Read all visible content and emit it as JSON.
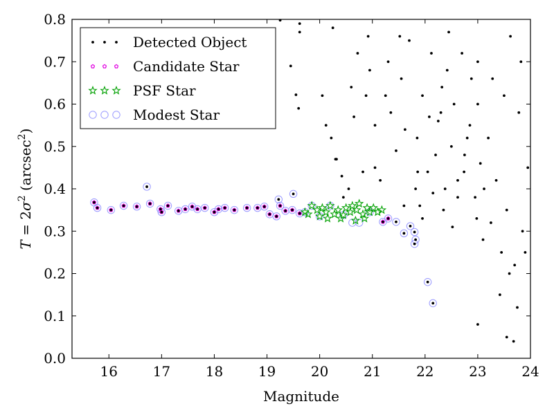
{
  "chart_data": {
    "type": "scatter",
    "xlabel": "Magnitude",
    "ylabel": {
      "main": "T",
      "eq": " = 2",
      "sigma": "σ",
      "sup2": "2",
      "open": " (arcsec",
      "close": ")"
    },
    "xlim": [
      15.3,
      24
    ],
    "ylim": [
      0.0,
      0.8
    ],
    "xticks": [
      16,
      17,
      18,
      19,
      20,
      21,
      22,
      23,
      24
    ],
    "yticks": [
      0.0,
      0.1,
      0.2,
      0.3,
      0.4,
      0.5,
      0.6,
      0.7,
      0.8
    ],
    "legend_position": "top-left",
    "grid": false,
    "series": [
      {
        "name": "Detected Object",
        "marker": "dot",
        "color": "#000000",
        "points": [
          [
            15.72,
            0.368
          ],
          [
            15.78,
            0.355
          ],
          [
            16.04,
            0.35
          ],
          [
            16.28,
            0.36
          ],
          [
            16.53,
            0.358
          ],
          [
            16.72,
            0.405
          ],
          [
            16.78,
            0.365
          ],
          [
            16.98,
            0.352
          ],
          [
            17.0,
            0.345
          ],
          [
            17.12,
            0.36
          ],
          [
            17.32,
            0.348
          ],
          [
            17.45,
            0.352
          ],
          [
            17.58,
            0.358
          ],
          [
            17.68,
            0.352
          ],
          [
            17.82,
            0.355
          ],
          [
            18.0,
            0.345
          ],
          [
            18.08,
            0.352
          ],
          [
            18.2,
            0.355
          ],
          [
            18.38,
            0.35
          ],
          [
            18.62,
            0.355
          ],
          [
            18.82,
            0.355
          ],
          [
            18.95,
            0.358
          ],
          [
            19.05,
            0.34
          ],
          [
            19.18,
            0.335
          ],
          [
            19.25,
            0.36
          ],
          [
            19.35,
            0.348
          ],
          [
            19.48,
            0.35
          ],
          [
            19.62,
            0.342
          ],
          [
            19.5,
            0.388
          ],
          [
            19.22,
            0.375
          ],
          [
            21.2,
            0.322
          ],
          [
            21.3,
            0.33
          ],
          [
            21.45,
            0.322
          ],
          [
            21.6,
            0.295
          ],
          [
            21.72,
            0.312
          ],
          [
            21.8,
            0.298
          ],
          [
            21.82,
            0.28
          ],
          [
            21.8,
            0.27
          ],
          [
            22.05,
            0.18
          ],
          [
            22.15,
            0.13
          ],
          [
            19.25,
            0.798
          ],
          [
            19.45,
            0.69
          ],
          [
            19.62,
            0.79
          ],
          [
            19.55,
            0.622
          ],
          [
            19.62,
            0.77
          ],
          [
            19.6,
            0.59
          ],
          [
            20.05,
            0.62
          ],
          [
            20.12,
            0.55
          ],
          [
            20.22,
            0.52
          ],
          [
            20.25,
            0.78
          ],
          [
            20.32,
            0.47
          ],
          [
            20.42,
            0.43
          ],
          [
            20.45,
            0.38
          ],
          [
            20.6,
            0.64
          ],
          [
            20.65,
            0.57
          ],
          [
            20.72,
            0.72
          ],
          [
            20.88,
            0.62
          ],
          [
            21.05,
            0.55
          ],
          [
            21.05,
            0.45
          ],
          [
            21.15,
            0.42
          ],
          [
            21.3,
            0.7
          ],
          [
            21.35,
            0.58
          ],
          [
            21.45,
            0.49
          ],
          [
            21.55,
            0.66
          ],
          [
            21.6,
            0.36
          ],
          [
            21.7,
            0.75
          ],
          [
            21.82,
            0.4
          ],
          [
            21.85,
            0.52
          ],
          [
            21.95,
            0.62
          ],
          [
            22.05,
            0.44
          ],
          [
            22.12,
            0.72
          ],
          [
            22.25,
            0.56
          ],
          [
            22.35,
            0.35
          ],
          [
            22.42,
            0.68
          ],
          [
            22.5,
            0.5
          ],
          [
            22.55,
            0.6
          ],
          [
            22.62,
            0.42
          ],
          [
            22.7,
            0.72
          ],
          [
            22.75,
            0.48
          ],
          [
            22.85,
            0.55
          ],
          [
            22.95,
            0.38
          ],
          [
            23.0,
            0.6
          ],
          [
            23.05,
            0.46
          ],
          [
            23.1,
            0.28
          ],
          [
            23.2,
            0.52
          ],
          [
            23.25,
            0.32
          ],
          [
            23.35,
            0.42
          ],
          [
            23.45,
            0.25
          ],
          [
            23.55,
            0.35
          ],
          [
            23.6,
            0.2
          ],
          [
            23.7,
            0.22
          ],
          [
            23.75,
            0.12
          ],
          [
            23.55,
            0.05
          ],
          [
            23.68,
            0.04
          ],
          [
            23.0,
            0.08
          ],
          [
            23.42,
            0.15
          ],
          [
            23.85,
            0.3
          ],
          [
            23.9,
            0.25
          ],
          [
            23.5,
            0.62
          ],
          [
            23.62,
            0.76
          ],
          [
            23.82,
            0.7
          ],
          [
            23.78,
            0.58
          ],
          [
            23.95,
            0.45
          ],
          [
            22.88,
            0.66
          ],
          [
            22.38,
            0.4
          ],
          [
            22.52,
            0.31
          ],
          [
            21.95,
            0.33
          ],
          [
            21.9,
            0.36
          ],
          [
            22.2,
            0.48
          ],
          [
            22.3,
            0.58
          ],
          [
            22.62,
            0.38
          ],
          [
            22.8,
            0.52
          ],
          [
            23.12,
            0.4
          ],
          [
            20.95,
            0.68
          ],
          [
            21.62,
            0.54
          ],
          [
            21.25,
            0.62
          ],
          [
            20.3,
            0.47
          ],
          [
            20.55,
            0.4
          ],
          [
            20.82,
            0.44
          ],
          [
            20.92,
            0.76
          ],
          [
            21.52,
            0.76
          ],
          [
            22.45,
            0.77
          ],
          [
            23.0,
            0.7
          ],
          [
            23.28,
            0.66
          ],
          [
            22.32,
            0.64
          ],
          [
            22.08,
            0.57
          ],
          [
            22.74,
            0.44
          ],
          [
            22.15,
            0.39
          ],
          [
            21.86,
            0.44
          ],
          [
            22.98,
            0.33
          ]
        ]
      },
      {
        "name": "Candidate Star",
        "marker": "pentagon",
        "color": "#e000e0",
        "points": [
          [
            15.72,
            0.368
          ],
          [
            15.78,
            0.355
          ],
          [
            16.04,
            0.35
          ],
          [
            16.28,
            0.36
          ],
          [
            16.53,
            0.358
          ],
          [
            16.78,
            0.365
          ],
          [
            16.98,
            0.352
          ],
          [
            17.0,
            0.345
          ],
          [
            17.12,
            0.36
          ],
          [
            17.32,
            0.348
          ],
          [
            17.45,
            0.352
          ],
          [
            17.58,
            0.358
          ],
          [
            17.68,
            0.352
          ],
          [
            17.82,
            0.355
          ],
          [
            18.0,
            0.345
          ],
          [
            18.08,
            0.352
          ],
          [
            18.2,
            0.355
          ],
          [
            18.38,
            0.35
          ],
          [
            18.62,
            0.355
          ],
          [
            18.82,
            0.355
          ],
          [
            18.95,
            0.358
          ],
          [
            19.05,
            0.34
          ],
          [
            19.18,
            0.335
          ],
          [
            19.25,
            0.36
          ],
          [
            19.35,
            0.348
          ],
          [
            19.48,
            0.35
          ],
          [
            19.62,
            0.342
          ],
          [
            21.2,
            0.322
          ],
          [
            21.3,
            0.33
          ]
        ]
      },
      {
        "name": "PSF Star",
        "marker": "star",
        "color": "#00a000",
        "points": [
          [
            19.72,
            0.345
          ],
          [
            19.85,
            0.36
          ],
          [
            19.95,
            0.35
          ],
          [
            20.0,
            0.335
          ],
          [
            20.05,
            0.355
          ],
          [
            20.12,
            0.345
          ],
          [
            20.2,
            0.36
          ],
          [
            20.28,
            0.34
          ],
          [
            20.35,
            0.35
          ],
          [
            20.45,
            0.338
          ],
          [
            20.5,
            0.355
          ],
          [
            20.58,
            0.345
          ],
          [
            20.62,
            0.36
          ],
          [
            20.7,
            0.35
          ],
          [
            20.75,
            0.365
          ],
          [
            20.82,
            0.34
          ],
          [
            20.9,
            0.355
          ],
          [
            20.95,
            0.345
          ],
          [
            21.02,
            0.355
          ],
          [
            21.1,
            0.345
          ],
          [
            21.18,
            0.35
          ],
          [
            19.78,
            0.34
          ],
          [
            20.15,
            0.33
          ],
          [
            20.4,
            0.33
          ],
          [
            20.68,
            0.325
          ],
          [
            20.85,
            0.33
          ]
        ]
      },
      {
        "name": "Modest Star",
        "marker": "circle",
        "color": "#8080ff",
        "points": [
          [
            15.72,
            0.368
          ],
          [
            15.78,
            0.355
          ],
          [
            16.04,
            0.35
          ],
          [
            16.28,
            0.36
          ],
          [
            16.53,
            0.358
          ],
          [
            16.72,
            0.405
          ],
          [
            16.78,
            0.365
          ],
          [
            16.98,
            0.352
          ],
          [
            17.0,
            0.345
          ],
          [
            17.12,
            0.36
          ],
          [
            17.32,
            0.348
          ],
          [
            17.45,
            0.352
          ],
          [
            17.58,
            0.358
          ],
          [
            17.68,
            0.352
          ],
          [
            17.82,
            0.355
          ],
          [
            18.0,
            0.345
          ],
          [
            18.08,
            0.352
          ],
          [
            18.2,
            0.355
          ],
          [
            18.38,
            0.35
          ],
          [
            18.62,
            0.355
          ],
          [
            18.82,
            0.355
          ],
          [
            18.95,
            0.358
          ],
          [
            19.05,
            0.34
          ],
          [
            19.18,
            0.335
          ],
          [
            19.25,
            0.36
          ],
          [
            19.35,
            0.348
          ],
          [
            19.48,
            0.35
          ],
          [
            19.62,
            0.342
          ],
          [
            19.5,
            0.388
          ],
          [
            19.22,
            0.375
          ],
          [
            19.72,
            0.345
          ],
          [
            19.85,
            0.36
          ],
          [
            20.0,
            0.335
          ],
          [
            20.2,
            0.36
          ],
          [
            20.45,
            0.338
          ],
          [
            20.62,
            0.32
          ],
          [
            20.75,
            0.32
          ],
          [
            20.95,
            0.345
          ],
          [
            21.2,
            0.322
          ],
          [
            21.3,
            0.33
          ],
          [
            21.45,
            0.322
          ],
          [
            21.6,
            0.295
          ],
          [
            21.72,
            0.312
          ],
          [
            21.8,
            0.298
          ],
          [
            21.82,
            0.28
          ],
          [
            21.8,
            0.27
          ],
          [
            22.05,
            0.18
          ],
          [
            22.15,
            0.13
          ]
        ]
      }
    ]
  }
}
